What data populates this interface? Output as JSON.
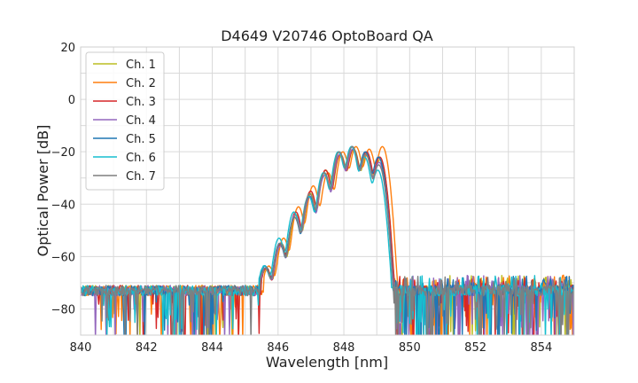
{
  "chart_data": {
    "type": "line",
    "title": "D4649 V20746 OptoBoard QA",
    "xlabel": "Wavelength [nm]",
    "ylabel": "Optical Power [dB]",
    "xlim": [
      840,
      855
    ],
    "ylim": [
      -90,
      20
    ],
    "xticks": [
      840,
      842,
      844,
      846,
      848,
      850,
      852,
      854
    ],
    "yticks": [
      20,
      0,
      -20,
      -40,
      -60,
      -80
    ],
    "xminor": [
      841,
      843,
      845,
      847,
      849,
      851,
      853
    ],
    "yminor": [
      10,
      -10,
      -30,
      -50,
      -70
    ],
    "grid": true,
    "legend": "upper-left",
    "noise_floor_db": -73,
    "spectrum_mode_peaks_nm": [
      845.6,
      846.05,
      846.5,
      846.95,
      847.4,
      847.85,
      848.25,
      848.65,
      849.05
    ],
    "series": [
      {
        "name": "Ch. 1",
        "color": "#bcbd22",
        "peak_shift_nm": 0.05,
        "mode_peaks_db": [
          -65,
          -55,
          -44,
          -36,
          -27,
          -21,
          -19,
          -21,
          -23
        ]
      },
      {
        "name": "Ch. 2",
        "color": "#ff7f0e",
        "peak_shift_nm": 0.12,
        "mode_peaks_db": [
          -64,
          -53,
          -41,
          -33,
          -28,
          -20,
          -18,
          -19,
          -18
        ]
      },
      {
        "name": "Ch. 3",
        "color": "#d62728",
        "peak_shift_nm": 0.04,
        "mode_peaks_db": [
          -65,
          -55,
          -43,
          -35,
          -27,
          -21,
          -19,
          -20,
          -22
        ]
      },
      {
        "name": "Ch. 4",
        "color": "#9467bd",
        "peak_shift_nm": 0.02,
        "mode_peaks_db": [
          -65,
          -56,
          -44,
          -37,
          -29,
          -21,
          -19,
          -21,
          -24
        ]
      },
      {
        "name": "Ch. 5",
        "color": "#1f77b4",
        "peak_shift_nm": 0.0,
        "mode_peaks_db": [
          -64,
          -55,
          -45,
          -37,
          -28,
          -20,
          -18,
          -20,
          -22
        ]
      },
      {
        "name": "Ch. 6",
        "color": "#17becf",
        "peak_shift_nm": -0.02,
        "mode_peaks_db": [
          -64,
          -53,
          -43,
          -37,
          -28,
          -20,
          -18,
          -22,
          -27
        ]
      },
      {
        "name": "Ch. 7",
        "color": "#7f7f7f",
        "peak_shift_nm": 0.01,
        "mode_peaks_db": [
          -65,
          -55,
          -45,
          -36,
          -28,
          -20,
          -18,
          -21,
          -25
        ]
      }
    ]
  }
}
